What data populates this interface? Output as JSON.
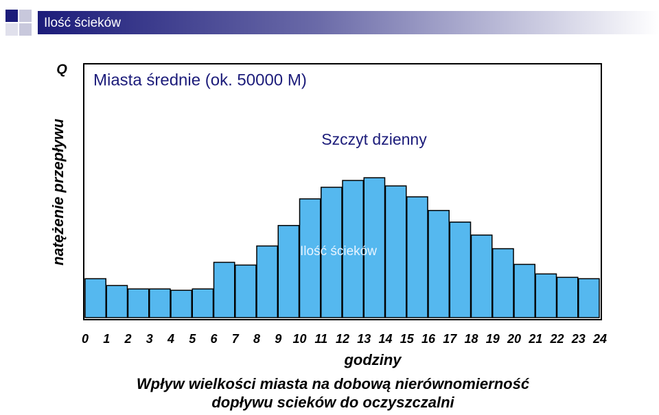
{
  "slide_title": "Ilość ścieków",
  "chart_data": {
    "type": "histogram",
    "y_label_short": "Q",
    "y_label": "natężenie przepływu",
    "title": "Miasta średnie (ok. 50000 M)",
    "annotations": [
      "Szczyt dzienny",
      "Ilość ścieków"
    ],
    "x_label": "godziny",
    "caption": [
      "Wpływ wielkości miasta na dobową nierównomierność",
      "dopływu scieków do oczyszczalni"
    ],
    "bins": [
      0,
      1,
      2,
      3,
      4,
      5,
      6,
      7,
      8,
      9,
      10,
      11,
      12,
      13,
      14,
      15,
      16,
      17,
      18,
      19,
      20,
      21,
      22,
      23,
      24
    ],
    "values": [
      57,
      47,
      42,
      42,
      40,
      42,
      81,
      77,
      105,
      135,
      174,
      191,
      201,
      205,
      193,
      177,
      157,
      140,
      121,
      101,
      78,
      64,
      59,
      57
    ],
    "color": "#55b8ef",
    "xlim": [
      0,
      24
    ],
    "ylim": [
      0,
      372
    ]
  }
}
